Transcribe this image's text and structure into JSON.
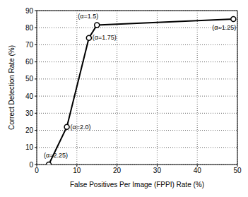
{
  "chart_data": {
    "type": "line",
    "x": [
      3,
      7.5,
      13,
      15,
      49
    ],
    "values": [
      0,
      22,
      74,
      81.5,
      85
    ],
    "annotations": [
      "(α=2.25)",
      "(α=2.0)",
      "(α=1.75)",
      "(α=1.5)",
      "(α=1.25)"
    ],
    "xlabel": "False Positives Per Image (FPPI) Rate (%)",
    "ylabel": "Correct Detection Rate (%)",
    "xlim": [
      0,
      50
    ],
    "ylim": [
      0,
      90
    ],
    "xticks": [
      0,
      10,
      20,
      30,
      40,
      50
    ],
    "yticks": [
      0,
      10,
      20,
      30,
      40,
      50,
      60,
      70,
      80,
      90
    ],
    "grid": true,
    "color": "#000000",
    "marker": "circle",
    "line_style": "solid"
  }
}
